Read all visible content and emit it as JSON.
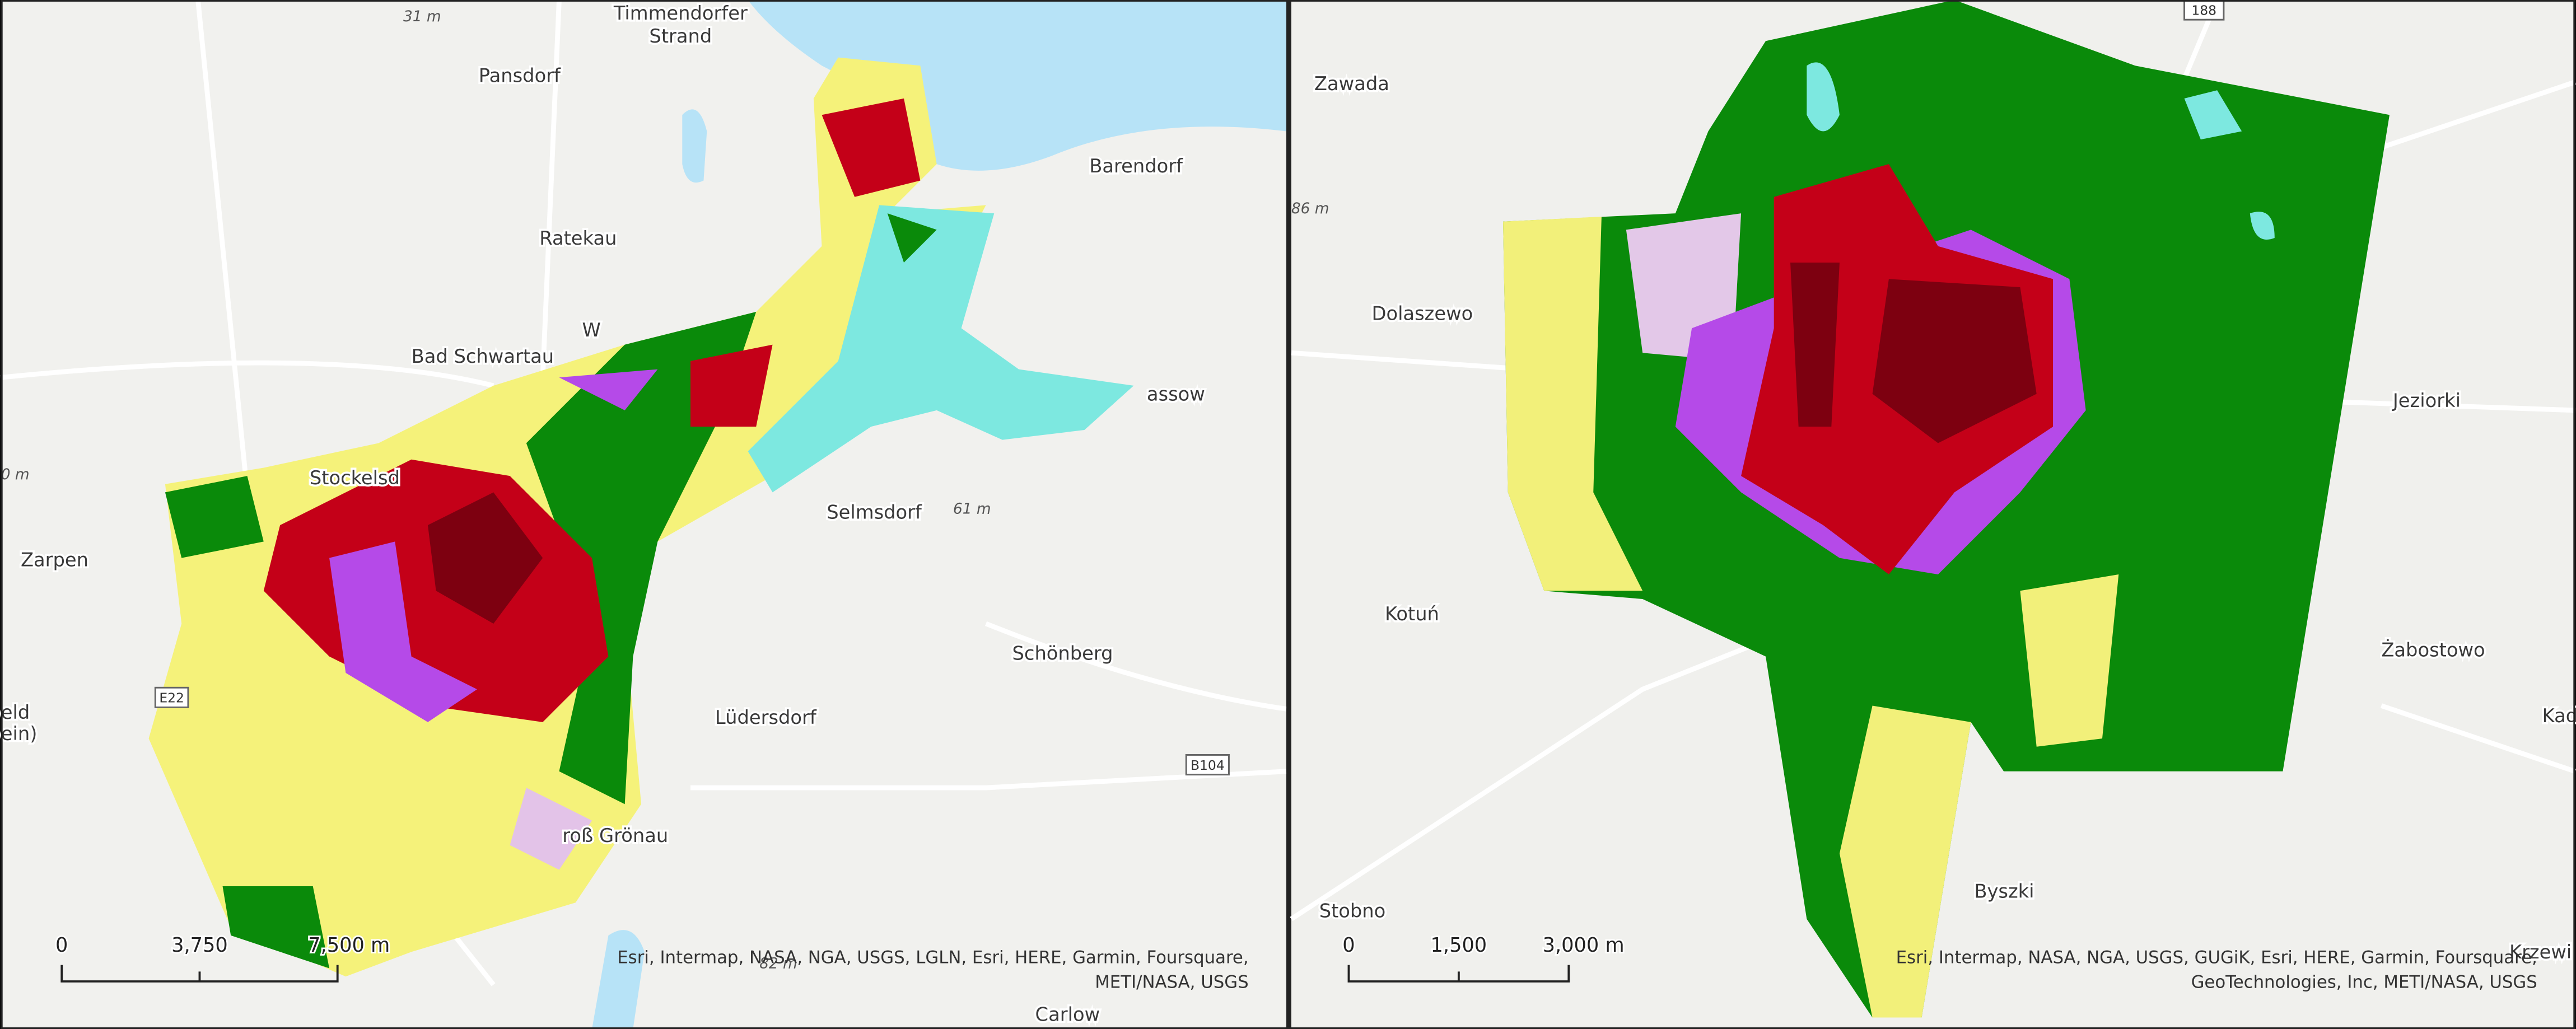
{
  "maps": [
    {
      "place_labels": [
        "Timmendorfer",
        "Strand",
        "Pansdorf",
        "Ratekau",
        "Barendorf",
        "Bad Schwartau",
        "Stockelsd",
        "assow",
        "Selmsdorf",
        "Zarpen",
        "eld",
        "ein)",
        "Schönberg",
        "Lüdersdorf",
        "roß Grönau",
        "Carlow",
        "W"
      ],
      "elevation_labels": [
        "31 m",
        "0 m",
        "61 m",
        "82 m"
      ],
      "road_labels": [
        "E22",
        "B104"
      ],
      "scale_bar": [
        "0",
        "3,750",
        "7,500 m"
      ],
      "attribution": [
        "Esri, Intermap, NASA, NGA, USGS, LGLN, Esri, HERE, Garmin, Foursquare,",
        "METI/NASA, USGS"
      ]
    },
    {
      "place_labels": [
        "Zawada",
        "Dolaszewo",
        "Jeziorki",
        "Kotuń",
        "Żabostowo",
        "Stobno",
        "Byszki",
        "Kad",
        "Krzewi"
      ],
      "elevation_labels": [
        "86 m"
      ],
      "road_labels": [
        "188"
      ],
      "scale_bar": [
        "0",
        "1,500",
        "3,000 m"
      ],
      "attribution": [
        "Esri, Intermap, NASA, NGA, USGS, GUGiK, Esri, HERE, Garmin, Foursquare,",
        "GeoTechnologies, Inc, METI/NASA, USGS"
      ]
    }
  ]
}
